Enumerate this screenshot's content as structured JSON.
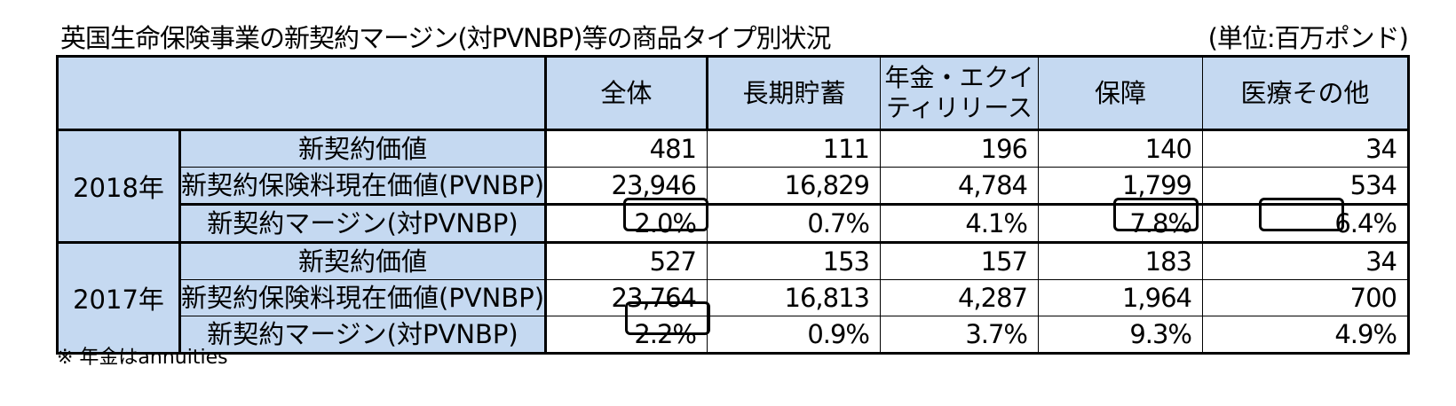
{
  "title": "英国生命保険事業の新契約マージン(対PVNBP)等の商品タイプ別状況",
  "unit": "(単位:百万ポンド)",
  "columns": [
    "全体",
    "長期貯蓄",
    "年金・エクイティリリース",
    "保障",
    "医療その他"
  ],
  "blocks": [
    {
      "year": "2018年",
      "rows": [
        {
          "label": "新契約価値",
          "values": [
            "481",
            "111",
            "196",
            "140",
            "34"
          ]
        },
        {
          "label": "新契約保険料現在価値(PVNBP)",
          "values": [
            "23,946",
            "16,829",
            "4,784",
            "1,799",
            "534"
          ]
        },
        {
          "label": "新契約マージン(対PVNBP)",
          "values": [
            "2.0%",
            "0.7%",
            "4.1%",
            "7.8%",
            "6.4%"
          ]
        }
      ]
    },
    {
      "year": "2017年",
      "rows": [
        {
          "label": "新契約価値",
          "values": [
            "527",
            "153",
            "157",
            "183",
            "34"
          ]
        },
        {
          "label": "新契約保険料現在価値(PVNBP)",
          "values": [
            "23,764",
            "16,813",
            "4,287",
            "1,964",
            "700"
          ]
        },
        {
          "label": "新契約マージン(対PVNBP)",
          "values": [
            "2.2%",
            "0.9%",
            "3.7%",
            "9.3%",
            "4.9%"
          ]
        }
      ]
    }
  ],
  "note": "※ 年金はannuities",
  "colors": {
    "header_bg": "#c5d9f1",
    "border": "#000000"
  }
}
